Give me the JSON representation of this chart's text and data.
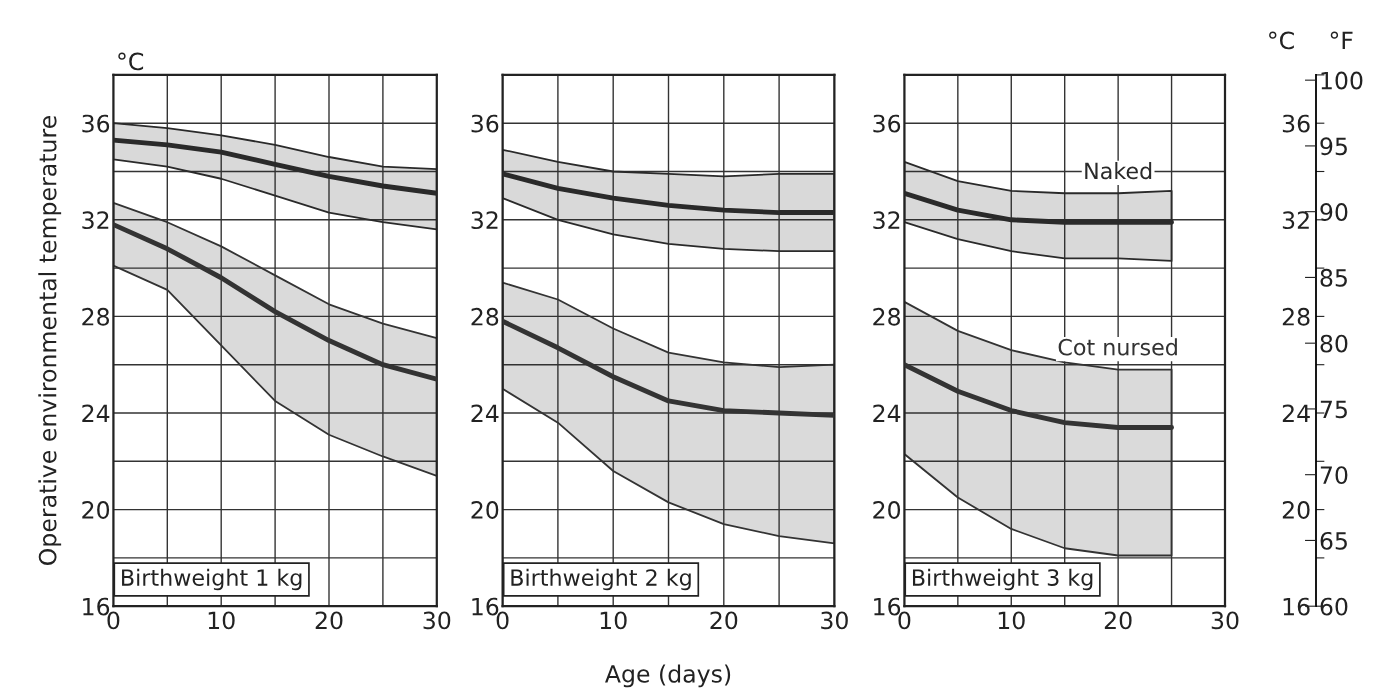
{
  "chart_data": [
    {
      "type": "line",
      "ylabel": "Operative environmental temperature",
      "annotations": [
        "°C",
        "Birthweight 1 kg"
      ],
      "x": [
        0,
        5,
        10,
        15,
        20,
        25,
        30
      ],
      "series": [
        {
          "color": "#2a2a2a",
          "values": [
            35.3,
            35.1,
            34.8,
            34.3,
            33.8,
            33.4,
            33.1
          ],
          "lower": [
            34.5,
            34.2,
            33.7,
            33.0,
            32.3,
            31.9,
            31.6
          ],
          "upper": [
            36.0,
            35.8,
            35.5,
            35.1,
            34.6,
            34.2,
            34.1
          ]
        },
        {
          "color": "#333333",
          "values": [
            31.8,
            30.8,
            29.6,
            28.2,
            27.0,
            26.0,
            25.4
          ],
          "lower": [
            30.1,
            29.1,
            26.8,
            24.5,
            23.1,
            22.2,
            21.4
          ],
          "upper": [
            32.7,
            31.9,
            30.9,
            29.7,
            28.5,
            27.7,
            27.1
          ]
        }
      ],
      "xlim": [
        0,
        30
      ],
      "ylim": [
        16,
        38
      ],
      "xticks": [
        0,
        {
          "value": 5,
          "label": null
        },
        10,
        {
          "value": 15,
          "label": null
        },
        20,
        {
          "value": 25,
          "label": null
        },
        30
      ],
      "yticks": [
        16,
        {
          "value": 18,
          "label": null
        },
        20,
        {
          "value": 22,
          "label": null
        },
        24,
        {
          "value": 26,
          "label": null
        },
        28,
        {
          "value": 30,
          "label": null
        },
        32,
        {
          "value": 34,
          "label": null
        },
        36,
        {
          "value": 38,
          "label": null
        }
      ],
      "grid": true
    },
    {
      "type": "line",
      "xlabel": "Age (days)",
      "annotations": [
        "Birthweight 2 kg"
      ],
      "x": [
        0,
        5,
        10,
        15,
        20,
        25,
        30
      ],
      "series": [
        {
          "color": "#2a2a2a",
          "values": [
            33.9,
            33.3,
            32.9,
            32.6,
            32.4,
            32.3,
            32.3
          ],
          "lower": [
            32.9,
            32.0,
            31.4,
            31.0,
            30.8,
            30.7,
            30.7
          ],
          "upper": [
            34.9,
            34.4,
            34.0,
            33.9,
            33.8,
            33.9,
            33.9
          ]
        },
        {
          "color": "#333333",
          "values": [
            27.8,
            26.7,
            25.5,
            24.5,
            24.1,
            24.0,
            23.9
          ],
          "lower": [
            25.0,
            23.6,
            21.6,
            20.3,
            19.4,
            18.9,
            18.6
          ],
          "upper": [
            29.4,
            28.7,
            27.5,
            26.5,
            26.1,
            25.9,
            26.0
          ]
        }
      ],
      "xlim": [
        0,
        30
      ],
      "ylim": [
        16,
        38
      ],
      "xticks": [
        0,
        {
          "value": 5,
          "label": null
        },
        10,
        {
          "value": 15,
          "label": null
        },
        20,
        {
          "value": 25,
          "label": null
        },
        30
      ],
      "yticks": [
        16,
        {
          "value": 18,
          "label": null
        },
        20,
        {
          "value": 22,
          "label": null
        },
        24,
        {
          "value": 26,
          "label": null
        },
        28,
        {
          "value": 30,
          "label": null
        },
        32,
        {
          "value": 34,
          "label": null
        },
        36,
        {
          "value": 38,
          "label": null
        }
      ],
      "grid": true
    },
    {
      "type": "line",
      "annotations": [
        "Birthweight 3 kg",
        "°C",
        "°F"
      ],
      "x": [
        0,
        5,
        10,
        15,
        20,
        25
      ],
      "series": [
        {
          "name": "Naked",
          "color": "#2a2a2a",
          "values": [
            33.1,
            32.4,
            32.0,
            31.9,
            31.9,
            31.9
          ],
          "lower": [
            31.9,
            31.2,
            30.7,
            30.4,
            30.4,
            30.3
          ],
          "upper": [
            34.4,
            33.6,
            33.2,
            33.1,
            33.1,
            33.2
          ]
        },
        {
          "name": "Cot nursed",
          "color": "#333333",
          "values": [
            26.0,
            24.9,
            24.1,
            23.6,
            23.4,
            23.4
          ],
          "lower": [
            22.3,
            20.5,
            19.2,
            18.4,
            18.1,
            18.1
          ],
          "upper": [
            28.6,
            27.4,
            26.6,
            26.1,
            25.8,
            25.8
          ]
        }
      ],
      "xlim": [
        0,
        30
      ],
      "ylim": [
        16,
        38
      ],
      "xticks": [
        0,
        {
          "value": 5,
          "label": null
        },
        10,
        {
          "value": 15,
          "label": null
        },
        20,
        {
          "value": 25,
          "label": null
        },
        30
      ],
      "yticks": [
        16,
        {
          "value": 18,
          "label": null
        },
        20,
        {
          "value": 22,
          "label": null
        },
        24,
        {
          "value": 26,
          "label": null
        },
        28,
        {
          "value": 30,
          "label": null
        },
        32,
        {
          "value": 34,
          "label": null
        },
        36,
        {
          "value": 38,
          "label": null
        }
      ],
      "y3lim": [
        16,
        38
      ],
      "y3ticks": [
        16,
        {
          "value": 18,
          "label": null
        },
        20,
        {
          "value": 22,
          "label": null
        },
        24,
        {
          "value": 26,
          "label": null
        },
        28,
        {
          "value": 30,
          "label": null
        },
        32,
        {
          "value": 34,
          "label": null
        },
        36,
        {
          "value": 38,
          "label": null
        }
      ],
      "y2lim": [
        60,
        100.4
      ],
      "y2ticks": [
        60,
        65,
        70,
        75,
        80,
        85,
        90,
        95,
        100
      ],
      "grid": true
    }
  ]
}
